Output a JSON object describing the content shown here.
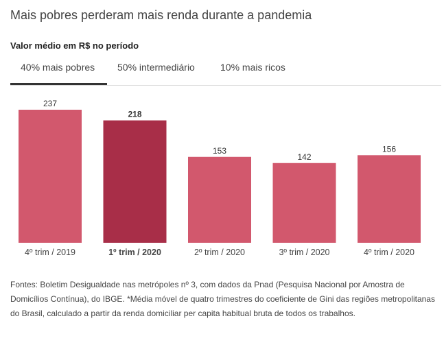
{
  "header": {
    "title": "Mais pobres perderam mais renda durante a pandemia",
    "subtitle": "Valor médio em R$ no período"
  },
  "tabs": [
    {
      "label": "40% mais pobres",
      "active": true
    },
    {
      "label": "50% intermediário"
    },
    {
      "label": "10% mais ricos"
    }
  ],
  "chart_data": {
    "type": "bar",
    "title": "Mais pobres perderam mais renda durante a pandemia",
    "ylabel": "Valor médio em R$ no período",
    "categories": [
      "4º trim / 2019",
      "1º trim / 2020",
      "2º trim / 2020",
      "3º trim / 2020",
      "4º trim / 2020"
    ],
    "values": [
      237,
      218,
      153,
      142,
      156
    ],
    "highlight_index": 1,
    "ylim": [
      0,
      237
    ],
    "colors": {
      "bar": "#d2586d",
      "highlight": "#a82e48"
    }
  },
  "notes": "Fontes: Boletim Desigualdade nas metrópoles nº 3, com dados da Pnad (Pesquisa Nacional por Amostra de Domicílios Contínua), do IBGE. *Média móvel de quatro trimestres do coeficiente de Gini das regiões metropolitanas do Brasil, calculado a partir da renda domiciliar per capita habitual bruta de todos os trabalhos."
}
